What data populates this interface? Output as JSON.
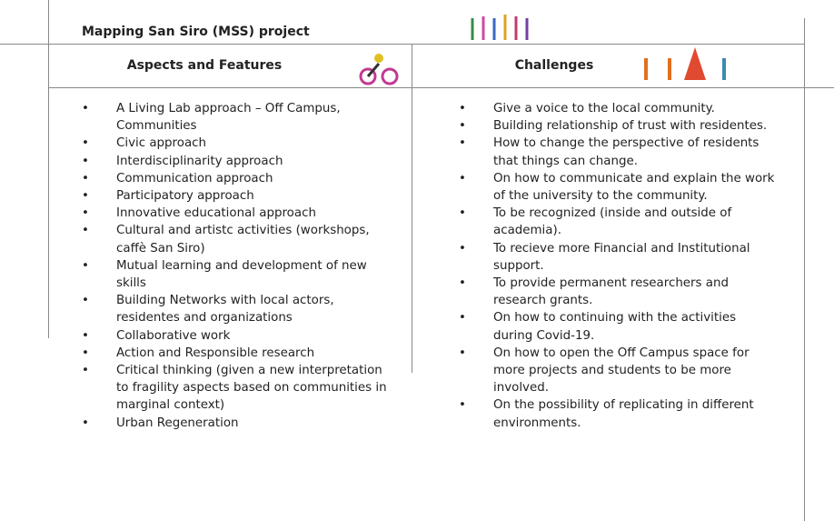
{
  "header": {
    "title": "Mapping San Siro (MSS) project"
  },
  "columns": [
    {
      "heading": "Aspects and Features",
      "items": [
        "A Living Lab approach – Off Campus, Communities",
        "Civic approach",
        "Interdisciplinarity approach",
        "Communication approach",
        "Participatory approach",
        "Innovative educational approach",
        "Cultural and artistc activities (workshops, caffè San Siro)",
        "Mutual learning and development of new skills",
        "Building Networks with local actors, residentes and organizations",
        "Collaborative work",
        "Action and Responsible research",
        "Critical thinking (given a new interpretation to fragility aspects based on communities in marginal context)",
        "Urban Regeneration"
      ]
    },
    {
      "heading": "Challenges",
      "items": [
        "Give a voice to the local community.",
        "Building relationship of trust with residentes.",
        "How to change the perspective of residents that things can change.",
        "On how to communicate and explain the work of the university to the community.",
        "To be recognized (inside and outside of academia).",
        "To recieve more Financial and Institutional support.",
        "To provide permanent researchers and research grants.",
        "On how to continuing with the activities during Covid-19.",
        "On how to open the Off Campus space for more projects and students to be more involved.",
        "On the possibility of replicating in different environments."
      ]
    }
  ]
}
